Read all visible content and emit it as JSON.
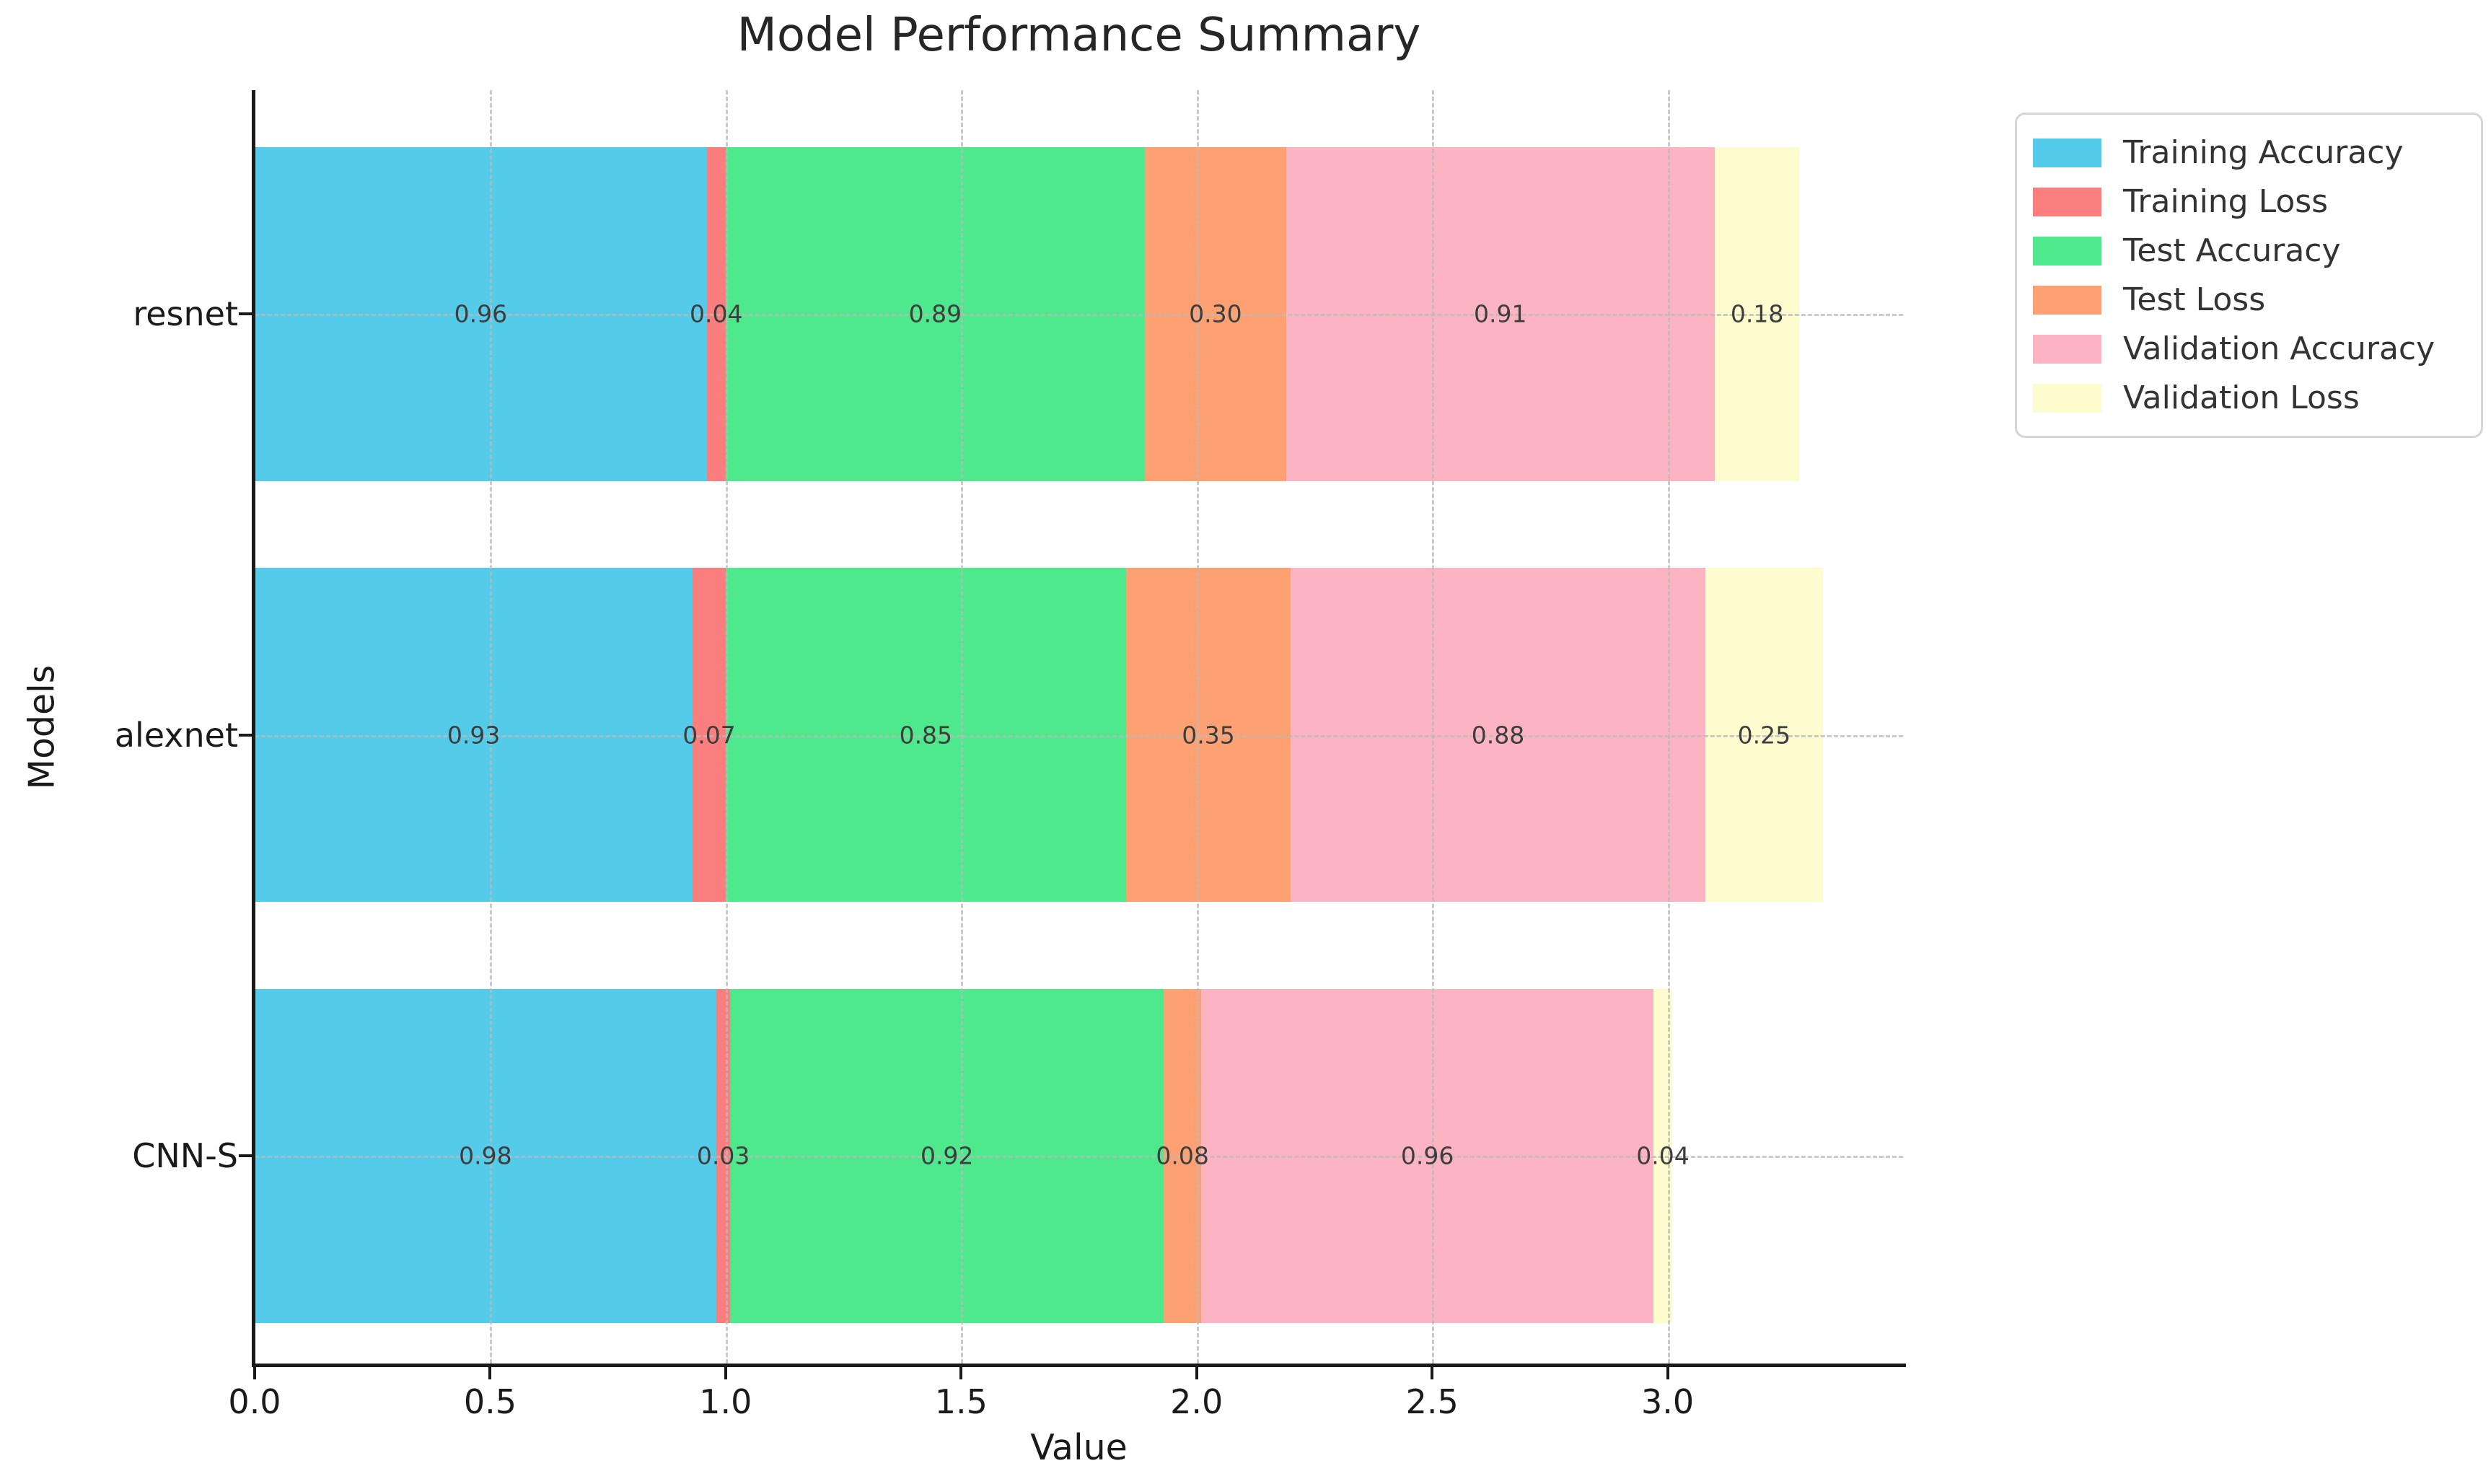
{
  "chart_data": {
    "type": "bar",
    "orientation": "horizontal",
    "stacked": true,
    "title": "Model Performance Summary",
    "xlabel": "Value",
    "ylabel": "Models",
    "categories": [
      "resnet",
      "alexnet",
      "CNN-S"
    ],
    "series": [
      {
        "name": "Training Accuracy",
        "color": "#55CBEA",
        "values": [
          0.96,
          0.93,
          0.98
        ]
      },
      {
        "name": "Training Loss",
        "color": "#FB7E7E",
        "values": [
          0.04,
          0.07,
          0.03
        ]
      },
      {
        "name": "Test Accuracy",
        "color": "#4DE98C",
        "values": [
          0.89,
          0.85,
          0.92
        ]
      },
      {
        "name": "Test Loss",
        "color": "#FDA172",
        "values": [
          0.3,
          0.35,
          0.08
        ]
      },
      {
        "name": "Validation Accuracy",
        "color": "#FDB4C2",
        "values": [
          0.91,
          0.88,
          0.96
        ]
      },
      {
        "name": "Validation Loss",
        "color": "#FCFCCF",
        "values": [
          0.18,
          0.25,
          0.04
        ]
      }
    ],
    "x_ticks": [
      0.0,
      0.5,
      1.0,
      1.5,
      2.0,
      2.5,
      3.0
    ],
    "x_tick_labels": [
      "0.0",
      "0.5",
      "1.0",
      "1.5",
      "2.0",
      "2.5",
      "3.0"
    ],
    "xlim": [
      0,
      3.5
    ],
    "value_label_decimals": 2,
    "grid": true,
    "legend_position": "outside-upper-right"
  }
}
